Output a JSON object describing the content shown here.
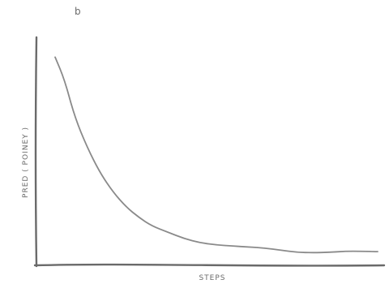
{
  "panel_label": "b",
  "colors": {
    "ink": "#6a6a6a",
    "curve": "#8a8a8a",
    "background": "#ffffff"
  },
  "chart_data": {
    "type": "line",
    "title": "",
    "xlabel": "STEPS",
    "ylabel": "PRED ( POINEY )",
    "xlim": [
      0,
      100
    ],
    "ylim": [
      0,
      100
    ],
    "grid": false,
    "legend": "none",
    "series": [
      {
        "x": [
          0,
          3,
          6,
          10,
          14,
          18,
          22,
          26,
          30,
          35,
          40,
          45,
          50,
          55,
          60,
          65,
          70,
          75,
          80,
          85,
          90,
          95,
          100
        ],
        "y": [
          96,
          85,
          68,
          53,
          41,
          32,
          25,
          20,
          16,
          13,
          10,
          8,
          7,
          6.5,
          6,
          5.5,
          4.5,
          3.5,
          3.3,
          3.5,
          4,
          4,
          3.8
        ]
      }
    ]
  }
}
